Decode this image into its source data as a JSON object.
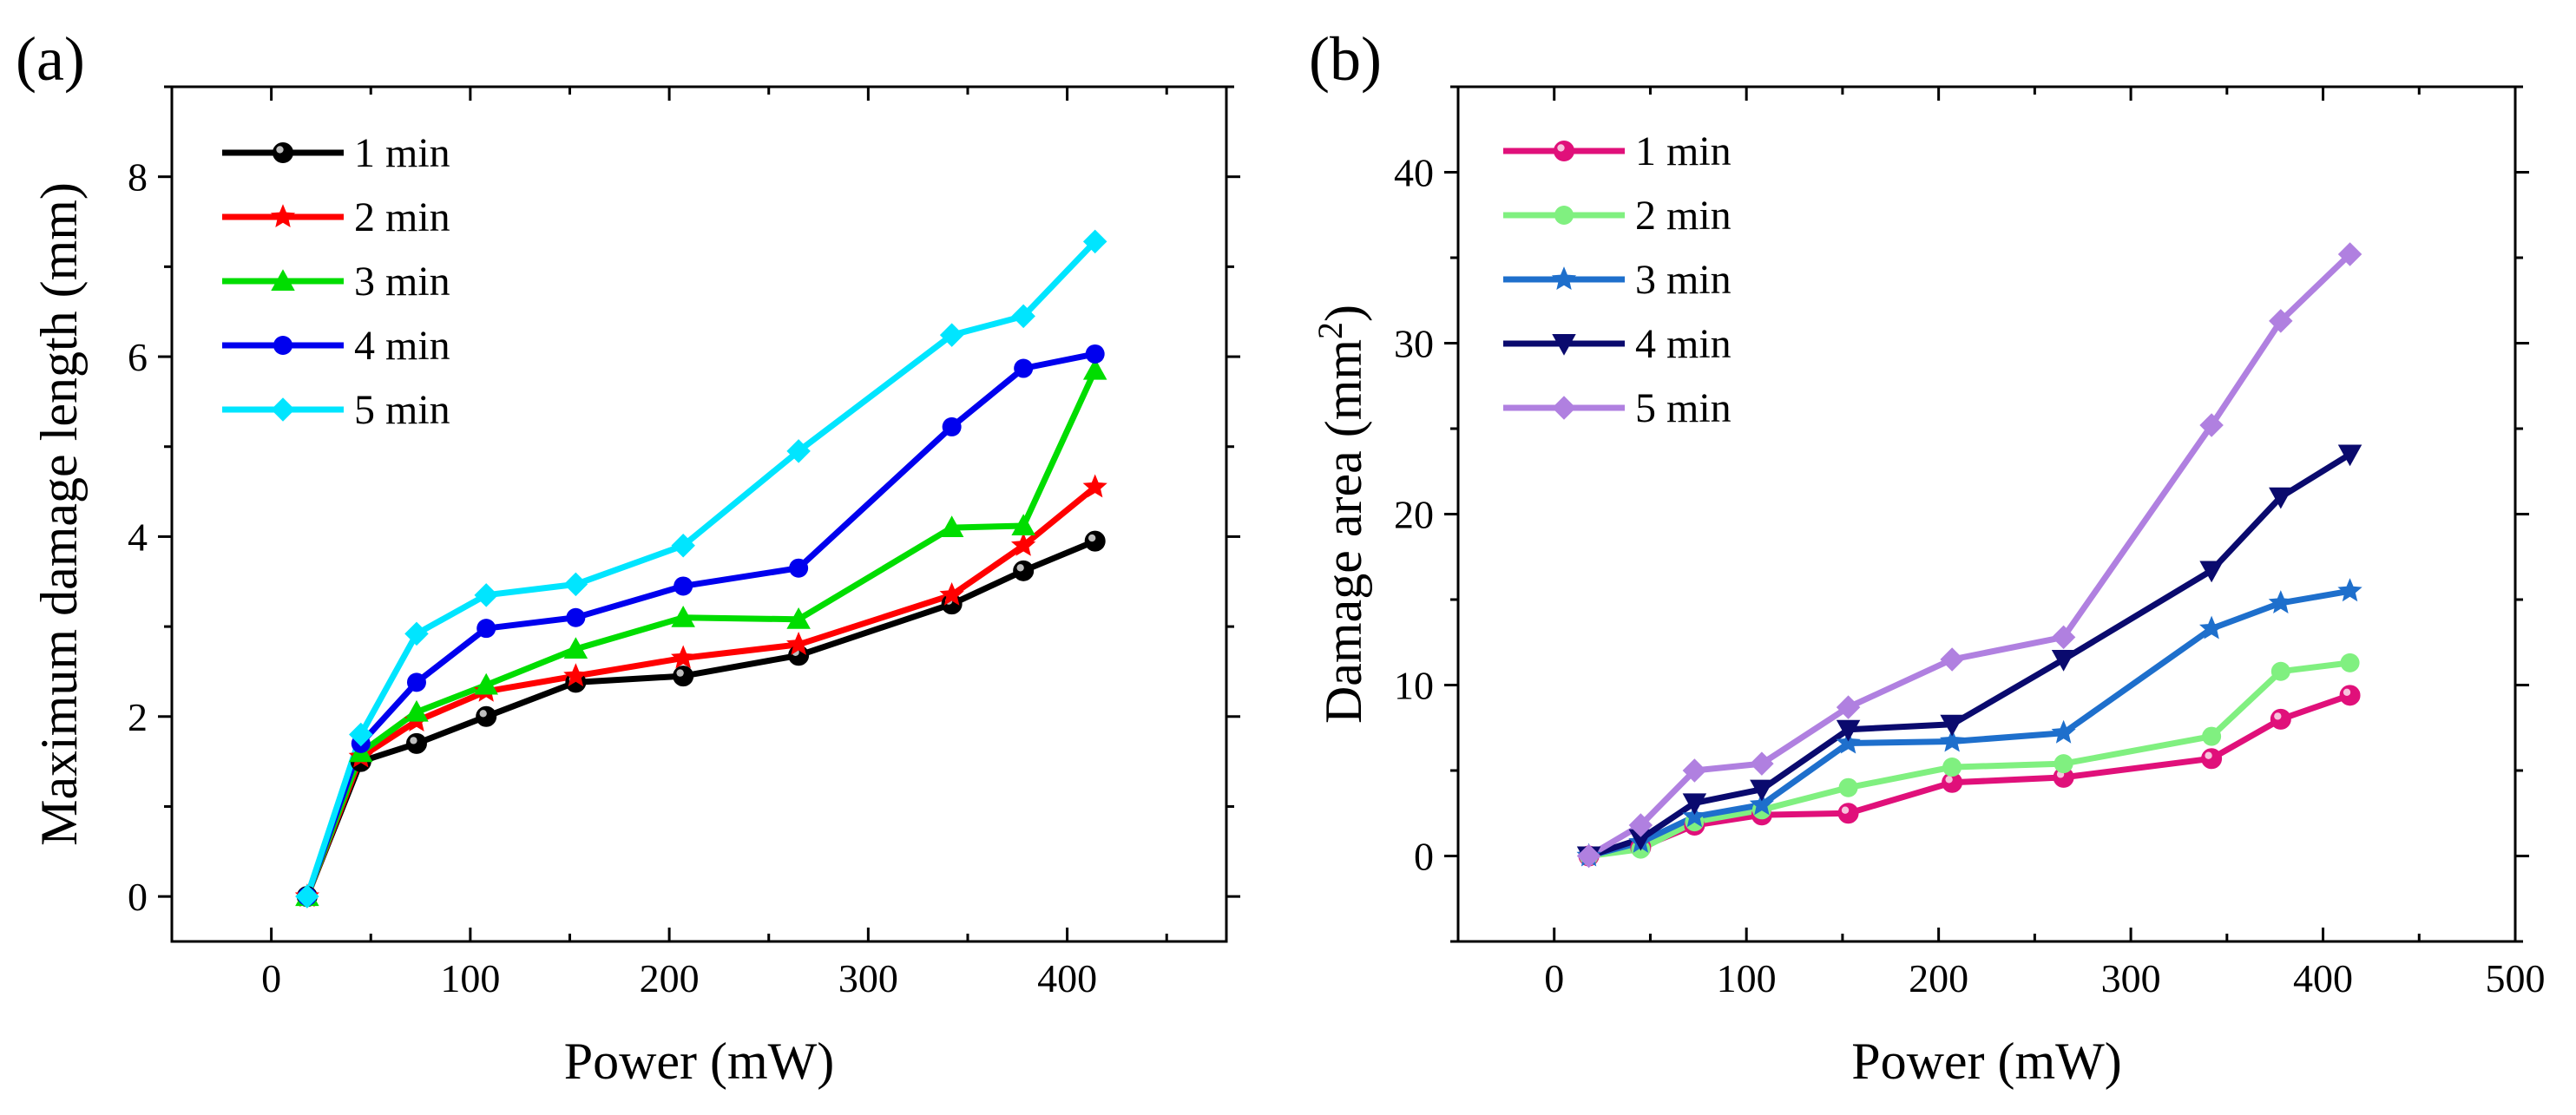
{
  "chart_data": [
    {
      "type": "line",
      "panel_label": "(a)",
      "title": "",
      "xlabel": "Power (mW)",
      "ylabel": "Maximum damage length (mm)",
      "xlim": [
        -50,
        480
      ],
      "ylim": [
        -0.5,
        9
      ],
      "xticks": [
        "0",
        "100",
        "200",
        "300",
        "400"
      ],
      "yticks": [
        "0",
        "2",
        "4",
        "6",
        "8"
      ],
      "xtick_values": [
        0,
        100,
        200,
        300,
        400
      ],
      "ytick_values": [
        0,
        2,
        4,
        6,
        8
      ],
      "grid": false,
      "legend_position": "top-left",
      "x": [
        18,
        45,
        73,
        108,
        153,
        207,
        265,
        342,
        378,
        414
      ],
      "series": [
        {
          "name": "1 min",
          "color": "#000000",
          "marker": "sphere",
          "values": [
            0,
            1.5,
            1.7,
            2.0,
            2.38,
            2.45,
            2.68,
            3.25,
            3.62,
            3.95
          ]
        },
        {
          "name": "2 min",
          "color": "#ff0000",
          "marker": "star",
          "values": [
            0,
            1.55,
            1.95,
            2.28,
            2.45,
            2.65,
            2.8,
            3.35,
            3.9,
            4.55
          ]
        },
        {
          "name": "3 min",
          "color": "#00dd00",
          "marker": "triangle-up",
          "values": [
            0,
            1.6,
            2.05,
            2.35,
            2.75,
            3.1,
            3.08,
            4.1,
            4.12,
            5.85
          ]
        },
        {
          "name": "4 min",
          "color": "#0000ee",
          "marker": "circle",
          "values": [
            0,
            1.7,
            2.38,
            2.98,
            3.1,
            3.45,
            3.65,
            5.22,
            5.87,
            6.03
          ]
        },
        {
          "name": "5 min",
          "color": "#00e5ff",
          "marker": "diamond",
          "values": [
            0,
            1.8,
            2.92,
            3.35,
            3.47,
            3.9,
            4.95,
            6.24,
            6.45,
            7.28
          ]
        }
      ]
    },
    {
      "type": "line",
      "panel_label": "(b)",
      "title": "",
      "xlabel": "Power (mW)",
      "ylabel": "Damage area (mm",
      "ylabel_superscript": "2",
      "ylabel_suffix": ")",
      "xlim": [
        -50,
        500
      ],
      "ylim": [
        -5,
        45
      ],
      "xticks": [
        "0",
        "100",
        "200",
        "300",
        "400",
        "500"
      ],
      "yticks": [
        "0",
        "10",
        "20",
        "30",
        "40"
      ],
      "xtick_values": [
        0,
        100,
        200,
        300,
        400,
        500
      ],
      "ytick_values": [
        0,
        10,
        20,
        30,
        40
      ],
      "grid": false,
      "legend_position": "top-left",
      "x": [
        18,
        45,
        73,
        108,
        153,
        207,
        265,
        342,
        378,
        414
      ],
      "series": [
        {
          "name": "1 min",
          "color": "#e0107a",
          "marker": "sphere",
          "values": [
            0,
            0.5,
            1.8,
            2.4,
            2.5,
            4.3,
            4.6,
            5.7,
            8.0,
            9.4
          ]
        },
        {
          "name": "2 min",
          "color": "#80f080",
          "marker": "circle",
          "values": [
            0,
            0.4,
            2.0,
            2.7,
            4.0,
            5.2,
            5.4,
            7.0,
            10.8,
            11.3
          ]
        },
        {
          "name": "3 min",
          "color": "#1e6fcc",
          "marker": "star",
          "values": [
            0,
            0.8,
            2.3,
            3.0,
            6.6,
            6.7,
            7.2,
            13.3,
            14.8,
            15.5
          ]
        },
        {
          "name": "4 min",
          "color": "#0a0a6e",
          "marker": "triangle-down",
          "values": [
            0,
            1.0,
            3.1,
            3.9,
            7.4,
            7.7,
            11.5,
            16.7,
            21.0,
            23.5
          ]
        },
        {
          "name": "5 min",
          "color": "#b080e0",
          "marker": "diamond",
          "values": [
            0,
            1.8,
            5.0,
            5.4,
            8.7,
            11.5,
            12.8,
            25.2,
            31.3,
            35.2
          ]
        }
      ]
    }
  ]
}
